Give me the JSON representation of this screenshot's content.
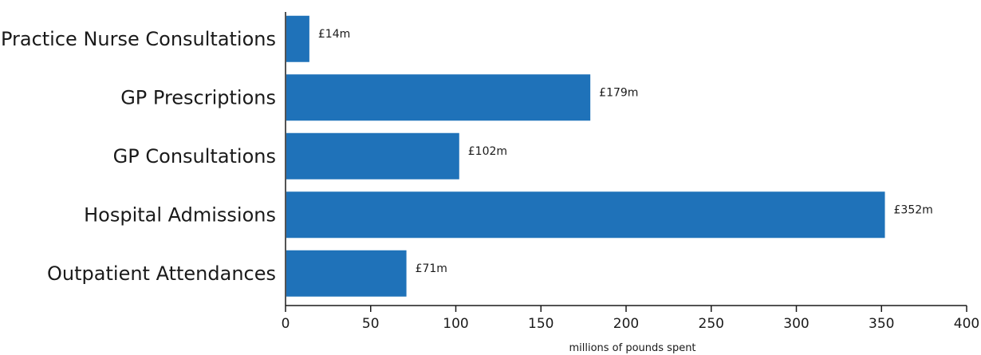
{
  "chart_data": {
    "type": "bar",
    "orientation": "horizontal",
    "categories": [
      "Practice Nurse Consultations",
      "GP Prescriptions",
      "GP Consultations",
      "Hospital Admissions",
      "Outpatient Attendances"
    ],
    "values": [
      14,
      179,
      102,
      352,
      71
    ],
    "data_labels": [
      "£14m",
      "£179m",
      "£102m",
      "£352m",
      "£71m"
    ],
    "xlabel": "millions of pounds spent",
    "ylabel": "",
    "title": "",
    "xlim": [
      0,
      400
    ],
    "xticks": [
      0,
      50,
      100,
      150,
      200,
      250,
      300,
      350,
      400
    ],
    "bar_color": "#1f72b9",
    "grid": false,
    "legend": "none"
  }
}
